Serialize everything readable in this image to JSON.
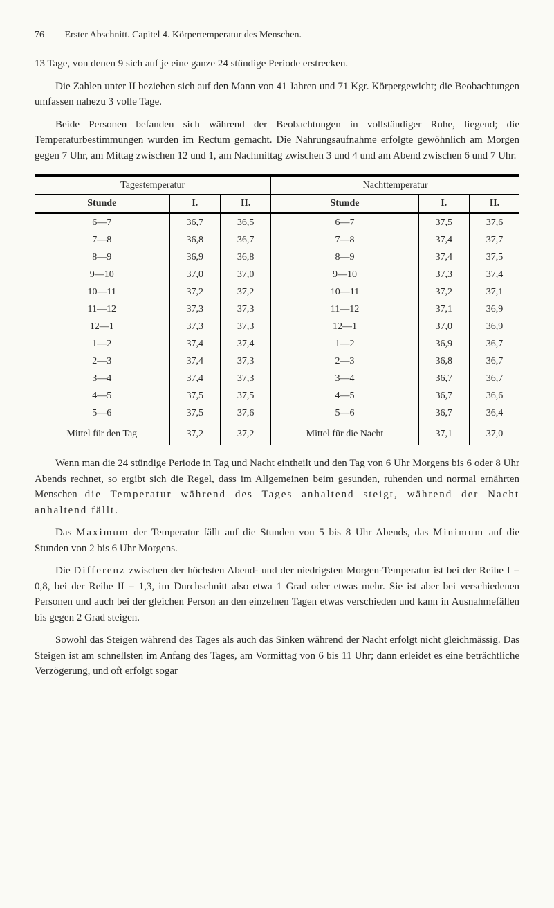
{
  "header": {
    "page_number": "76",
    "running_title": "Erster Abschnitt.  Capitel 4.  Körpertemperatur des Menschen."
  },
  "para1": "13 Tage, von denen 9 sich auf je eine ganze 24 stündige Periode erstrecken.",
  "para2": "Die Zahlen unter II beziehen sich auf den Mann von 41 Jahren und 71 Kgr. Körpergewicht; die Beobachtungen umfassen nahezu 3 volle Tage.",
  "para3": "Beide Personen befanden sich während der Beobachtungen in vollständiger Ruhe, liegend; die Temperaturbestimmungen wurden im Rectum gemacht. Die Nahrungsaufnahme erfolgte gewöhnlich am Morgen gegen 7 Uhr, am Mittag zwischen 12 und 1, am Nachmittag zwischen 3 und 4 und am Abend zwischen 6 und 7 Uhr.",
  "table": {
    "group_left": "Tagestemperatur",
    "group_right": "Nachttemperatur",
    "col_headers": [
      "Stunde",
      "I.",
      "II.",
      "Stunde",
      "I.",
      "II."
    ],
    "rows": [
      [
        "6—7",
        "36,7",
        "36,5",
        "6—7",
        "37,5",
        "37,6"
      ],
      [
        "7—8",
        "36,8",
        "36,7",
        "7—8",
        "37,4",
        "37,7"
      ],
      [
        "8—9",
        "36,9",
        "36,8",
        "8—9",
        "37,4",
        "37,5"
      ],
      [
        "9—10",
        "37,0",
        "37,0",
        "9—10",
        "37,3",
        "37,4"
      ],
      [
        "10—11",
        "37,2",
        "37,2",
        "10—11",
        "37,2",
        "37,1"
      ],
      [
        "11—12",
        "37,3",
        "37,3",
        "11—12",
        "37,1",
        "36,9"
      ],
      [
        "12—1",
        "37,3",
        "37,3",
        "12—1",
        "37,0",
        "36,9"
      ],
      [
        "1—2",
        "37,4",
        "37,4",
        "1—2",
        "36,9",
        "36,7"
      ],
      [
        "2—3",
        "37,4",
        "37,3",
        "2—3",
        "36,8",
        "36,7"
      ],
      [
        "3—4",
        "37,4",
        "37,3",
        "3—4",
        "36,7",
        "36,7"
      ],
      [
        "4—5",
        "37,5",
        "37,5",
        "4—5",
        "36,7",
        "36,6"
      ],
      [
        "5—6",
        "37,5",
        "37,6",
        "5—6",
        "36,7",
        "36,4"
      ]
    ],
    "footer_row": {
      "label_left": "Mittel für den Tag",
      "val_left_1": "37,2",
      "val_left_2": "37,2",
      "label_right": "Mittel für die Nacht",
      "val_right_1": "37,1",
      "val_right_2": "37,0"
    }
  },
  "para4_a": "Wenn man die 24 stündige Periode in Tag und Nacht eintheilt und den Tag von 6 Uhr Morgens bis 6 oder 8 Uhr Abends rechnet, so ergibt sich die Regel, dass im Allgemeinen beim gesunden, ruhenden und normal ernährten Menschen ",
  "para4_b": "die Temperatur während des Tages anhaltend steigt, während der Nacht anhaltend fällt.",
  "para5_a": "Das ",
  "para5_b": "Maximum",
  "para5_c": " der Temperatur fällt auf die Stunden von 5 bis 8 Uhr Abends, das ",
  "para5_d": "Minimum",
  "para5_e": " auf die Stunden von 2 bis 6 Uhr Morgens.",
  "para6_a": "Die ",
  "para6_b": "Differenz",
  "para6_c": " zwischen der höchsten Abend- und der niedrigsten Morgen-Temperatur ist bei der Reihe I = 0,8, bei der Reihe II = 1,3, im Durchschnitt also etwa 1 Grad oder etwas mehr. Sie ist aber bei verschiedenen Personen und auch bei der gleichen Person an den einzelnen Tagen etwas verschieden und kann in Ausnahmefällen bis gegen 2 Grad steigen.",
  "para7": "Sowohl das Steigen während des Tages als auch das Sinken während der Nacht erfolgt nicht gleichmässig. Das Steigen ist am schnellsten im Anfang des Tages, am Vormittag von 6 bis 11 Uhr; dann erleidet es eine beträchtliche Verzögerung, und oft erfolgt sogar"
}
